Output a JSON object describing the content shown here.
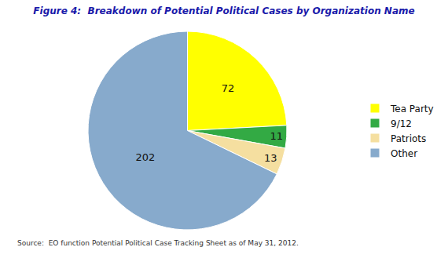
{
  "chart_data": {
    "type": "pie",
    "title": "Figure 4:  Breakdown of Potential Political Cases by Organization Name",
    "categories": [
      "Tea Party",
      "9/12",
      "Patriots",
      "Other"
    ],
    "values": [
      72,
      11,
      13,
      202
    ],
    "colors": [
      "#FFFF00",
      "#33AA44",
      "#F5DFA0",
      "#87AACC"
    ],
    "data_labels": true,
    "legend": "right",
    "annotations": [
      "Source:  EO function Potential Political Case Tracking Sheet as of May 31, 2012."
    ]
  }
}
